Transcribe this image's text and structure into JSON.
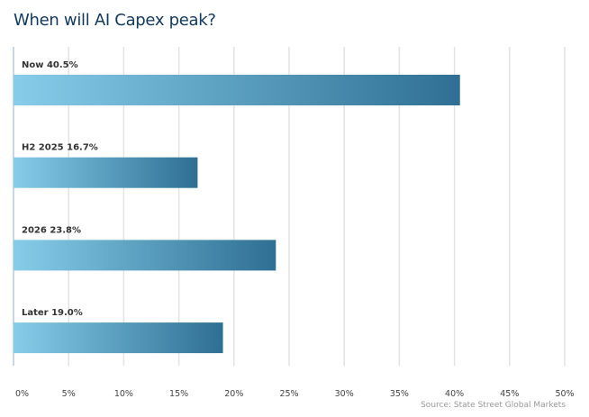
{
  "chart_data": {
    "type": "bar",
    "orientation": "horizontal",
    "title": "When will AI Capex peak?",
    "categories": [
      "Now",
      "H2 2025",
      "2026",
      "Later"
    ],
    "values": [
      40.5,
      16.7,
      23.8,
      19.0
    ],
    "data_labels": [
      "40.5%",
      "16.7%",
      "23.8%",
      "19.0%"
    ],
    "xlim": [
      0,
      50
    ],
    "xticks": [
      0,
      5,
      10,
      15,
      20,
      25,
      30,
      35,
      40,
      45,
      50
    ],
    "xtick_labels": [
      "0%",
      "5%",
      "10%",
      "15%",
      "20%",
      "25%",
      "30%",
      "35%",
      "40%",
      "45%",
      "50%"
    ],
    "grid": true,
    "colors": {
      "gradient_start": "#87cdea",
      "gradient_end": "#2e6f93",
      "title": "#12395e"
    },
    "source": "Source: State Street Global Markets"
  }
}
